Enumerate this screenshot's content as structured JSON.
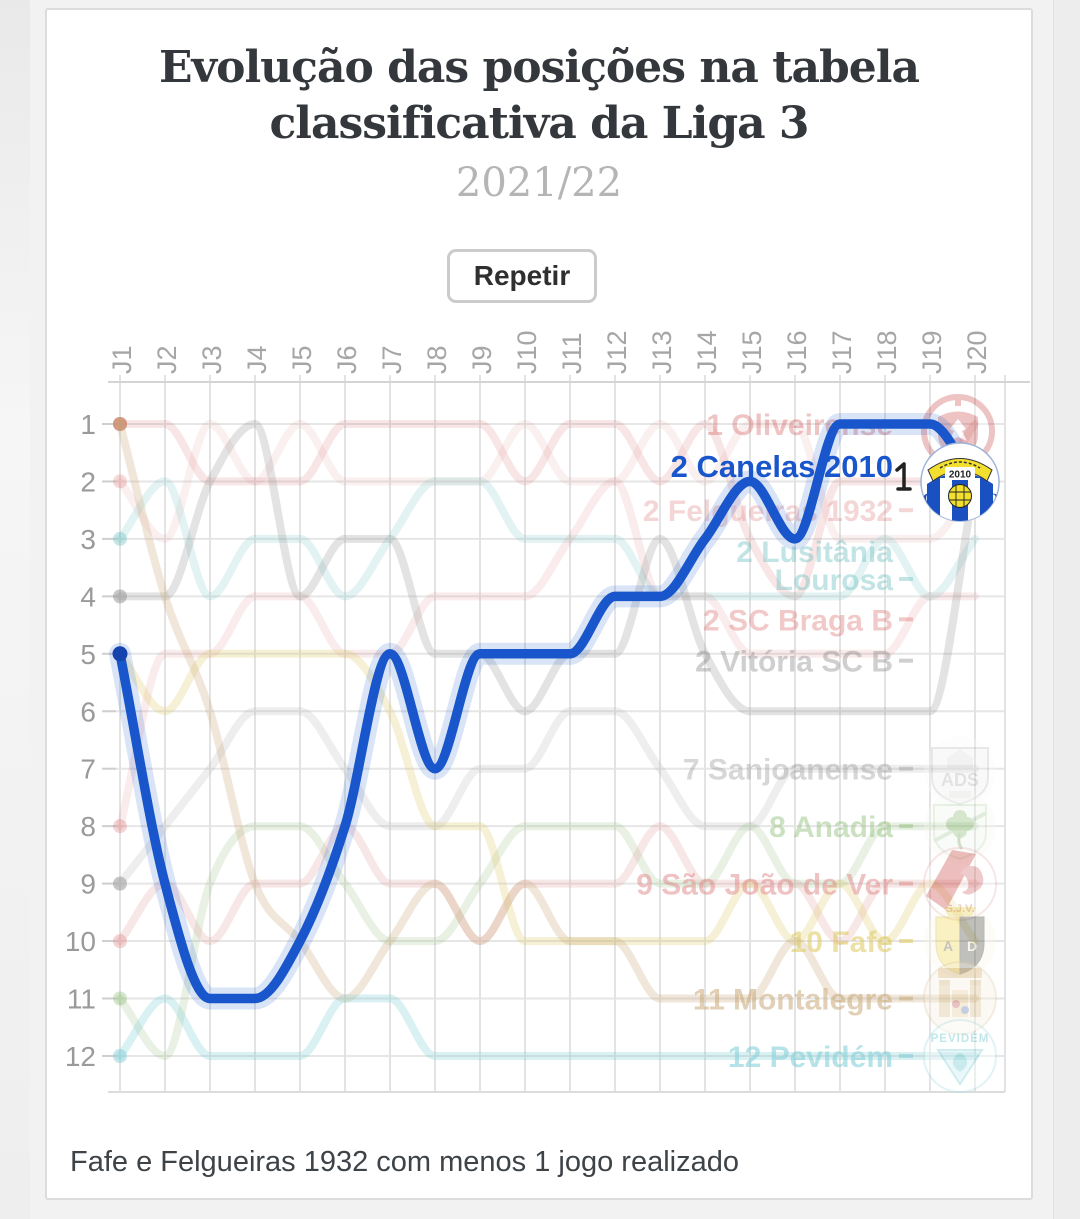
{
  "header": {
    "title_line1": "Evolução das posições na tabela",
    "title_line2": "classificativa da Liga 3",
    "subtitle": "2021/22",
    "title_color": "#34383c",
    "subtitle_color": "#b5b5b5"
  },
  "controls": {
    "replay_label": "Repetir"
  },
  "footer": {
    "note": "Fafe e Felgueiras 1932 com menos 1 jogo realizado"
  },
  "crest_texts": {
    "canelas_year": "2010",
    "canelas_c_left": "C",
    "canelas_c_right": "C",
    "canelas_f": "F",
    "ads": "ADS",
    "sjv": "S.J.V.",
    "fafe_a": "A",
    "fafe_d": "D",
    "pevidem": "PEVIDÉM"
  },
  "chart_data": {
    "type": "line",
    "title": "Evolução das posições na tabela classificativa da Liga 3",
    "season": "2021/22",
    "x_labels": [
      "J1",
      "J2",
      "J3",
      "J4",
      "J5",
      "J6",
      "J7",
      "J8",
      "J9",
      "J10",
      "J11",
      "J12",
      "J13",
      "J14",
      "J15",
      "J16",
      "J17",
      "J18",
      "J19",
      "J20"
    ],
    "y_labels": [
      "1",
      "2",
      "3",
      "4",
      "5",
      "6",
      "7",
      "8",
      "9",
      "10",
      "11",
      "12"
    ],
    "ylim": [
      1,
      12
    ],
    "y_inverted": true,
    "grid": true,
    "highlight": "Canelas 2010",
    "accent_color": "#1956cb",
    "series": [
      {
        "name": "Oliveirense",
        "slug": "oliveirense",
        "label": "1 Oliveirense",
        "label_row": 1.0,
        "color": "#d05555",
        "opacity": 0.15,
        "dot_opacity": 0.7,
        "width": 8,
        "highlighted": false,
        "label_color": "rgba(205,85,85,0.35)",
        "values": [
          1,
          1,
          2,
          2,
          2,
          1,
          1,
          1,
          1,
          2,
          1,
          1,
          2,
          1,
          3,
          4,
          2,
          2,
          2,
          1
        ]
      },
      {
        "name": "Felgueiras 1932",
        "slug": "felgueiras-1932",
        "label": "2 Felgueiras 1932",
        "label_row": 2.5,
        "color": "#e08080",
        "opacity": 0.12,
        "dot_opacity": 0.3,
        "width": 8,
        "highlighted": false,
        "label_color": "rgba(220,120,120,0.3)",
        "values": [
          2,
          3,
          1,
          2,
          1,
          2,
          2,
          2,
          2,
          1,
          2,
          2,
          1,
          2,
          1,
          1,
          3,
          3,
          3,
          2
        ]
      },
      {
        "name": "Lusitânia Lourosa",
        "slug": "lusitania-lourosa",
        "label": "2 Lusitânia Lourosa",
        "label_lines": [
          "2 Lusitânia",
          "Lourosa"
        ],
        "label_row": 3.21,
        "color": "#74c4c4",
        "opacity": 0.2,
        "dot_opacity": 0.4,
        "width": 8,
        "highlighted": false,
        "label_color": "rgba(110,190,190,0.42)",
        "values": [
          3,
          2,
          4,
          3,
          3,
          4,
          3,
          2,
          2,
          3,
          3,
          3,
          4,
          4,
          4,
          4,
          4,
          3,
          4,
          3
        ]
      },
      {
        "name": "SC Braga B",
        "slug": "sc-braga-b",
        "label": "2 SC Braga B",
        "label_row": 4.4,
        "color": "#d97070",
        "opacity": 0.13,
        "dot_opacity": 0.3,
        "width": 8,
        "highlighted": false,
        "label_color": "rgba(215,100,100,0.35)",
        "values": [
          8,
          5,
          5,
          4,
          4,
          5,
          5,
          4,
          4,
          4,
          3,
          2,
          4,
          4,
          5,
          5,
          5,
          5,
          4,
          4
        ]
      },
      {
        "name": "Vitória SC B",
        "slug": "vitoria-sc-b",
        "label": "2 Vitória SC B",
        "label_row": 5.12,
        "color": "#8f8f8f",
        "opacity": 0.25,
        "dot_opacity": 0.5,
        "width": 8,
        "highlighted": false,
        "label_color": "rgba(140,140,140,0.42)",
        "values": [
          4,
          4,
          2,
          1,
          4,
          3,
          3,
          5,
          5,
          6,
          5,
          5,
          3,
          5,
          6,
          6,
          6,
          6,
          6,
          2
        ]
      },
      {
        "name": "Sanjoanense",
        "slug": "sanjoanense",
        "label": "7 Sanjoanense",
        "label_row": 7,
        "color": "#a8a8a8",
        "opacity": 0.2,
        "dot_opacity": 0.65,
        "width": 8,
        "highlighted": false,
        "label_color": "rgba(150,150,150,0.38)",
        "values": [
          9,
          8,
          7,
          6,
          6,
          7,
          8,
          8,
          7,
          7,
          6,
          6,
          7,
          8,
          8,
          7,
          7,
          7,
          7,
          7
        ]
      },
      {
        "name": "Anadia",
        "slug": "anadia",
        "label": "8 Anadia",
        "label_row": 8,
        "color": "#94c07e",
        "opacity": 0.22,
        "dot_opacity": 0.4,
        "width": 8,
        "highlighted": false,
        "label_color": "rgba(148,192,126,0.48)",
        "values": [
          11,
          12,
          9,
          8,
          8,
          9,
          10,
          10,
          9,
          8,
          8,
          8,
          9,
          9,
          8,
          9,
          9,
          8,
          8,
          8
        ]
      },
      {
        "name": "São João de Ver",
        "slug": "sao-joao-de-ver",
        "label": "9 São João de Ver",
        "label_row": 9,
        "color": "#e09090",
        "opacity": 0.22,
        "dot_opacity": 0.4,
        "width": 8,
        "highlighted": false,
        "label_color": "rgba(224,135,135,0.5)",
        "values": [
          10,
          9,
          10,
          9,
          9,
          8,
          9,
          9,
          10,
          9,
          9,
          9,
          8,
          9,
          9,
          9,
          10,
          9,
          9,
          9
        ]
      },
      {
        "name": "Fafe",
        "slug": "fafe",
        "label": "10 Fafe",
        "label_row": 10,
        "color": "#ddc75a",
        "opacity": 0.25,
        "dot_opacity": 0.45,
        "width": 8,
        "highlighted": false,
        "label_color": "rgba(221,199,90,0.55)",
        "values": [
          5,
          6,
          5,
          5,
          5,
          5,
          6,
          8,
          8,
          10,
          10,
          10,
          10,
          10,
          9,
          10,
          9,
          10,
          9,
          10
        ]
      },
      {
        "name": "Montalegre",
        "slug": "montalegre",
        "label": "11 Montalegre",
        "label_row": 11,
        "color": "#c9a97a",
        "opacity": 0.28,
        "dot_opacity": 0.55,
        "width": 8,
        "highlighted": false,
        "label_color": "rgba(201,169,122,0.55)",
        "values": [
          1,
          4,
          6,
          9,
          10,
          11,
          10,
          9,
          10,
          9,
          10,
          10,
          11,
          11,
          11,
          10,
          11,
          11,
          11,
          11
        ]
      },
      {
        "name": "Pevidém",
        "slug": "pevidem",
        "label": "12 Pevidém",
        "label_row": 12,
        "color": "#85d0d8",
        "opacity": 0.3,
        "dot_opacity": 0.5,
        "width": 8,
        "highlighted": false,
        "label_color": "rgba(133,208,216,0.6)",
        "values": [
          12,
          11,
          12,
          12,
          12,
          11,
          11,
          12,
          12,
          12,
          12,
          12,
          12,
          12,
          12,
          12,
          12,
          12,
          12,
          12
        ]
      },
      {
        "name": "Canelas 2010",
        "slug": "canelas-2010",
        "label": "2 Canelas 2010",
        "label_row": 1.73,
        "color": "#1956cb",
        "opacity": 1,
        "dot_opacity": 1,
        "width": 9.5,
        "highlighted": true,
        "label_color": "#1956cb",
        "values": [
          5,
          9,
          11,
          11,
          10,
          8,
          5,
          7,
          5,
          5,
          5,
          4,
          4,
          3,
          2,
          3,
          1,
          1,
          1,
          2
        ]
      }
    ]
  }
}
